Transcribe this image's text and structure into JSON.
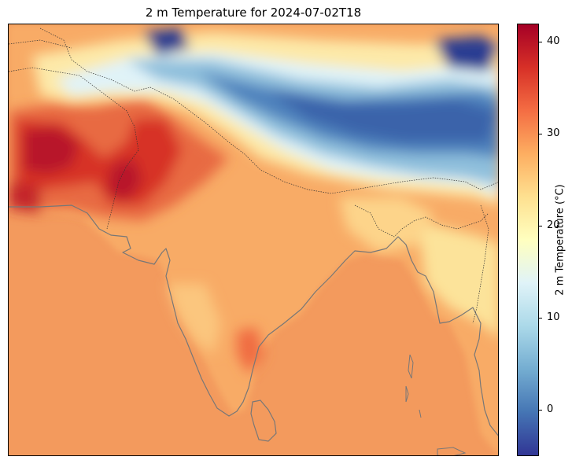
{
  "title": "2 m Temperature for 2024-07-02T18",
  "colorbar": {
    "label": "2 m Temperature (°C)",
    "vmin": -5,
    "vmax": 42,
    "ticks": [
      0,
      10,
      20,
      30,
      40
    ],
    "colormap": "RdYlBu_r",
    "stops": [
      "#313695",
      "#4575b4",
      "#74add1",
      "#abd9e9",
      "#e0f3f8",
      "#ffffbf",
      "#fee090",
      "#fdae61",
      "#f46d43",
      "#d73027",
      "#a50026"
    ]
  },
  "map": {
    "region": "South Asia",
    "colors": {
      "ocean": "#f29a5e",
      "land_base": "#f8a964",
      "coastline": "#777777",
      "borders": "#333333"
    }
  }
}
